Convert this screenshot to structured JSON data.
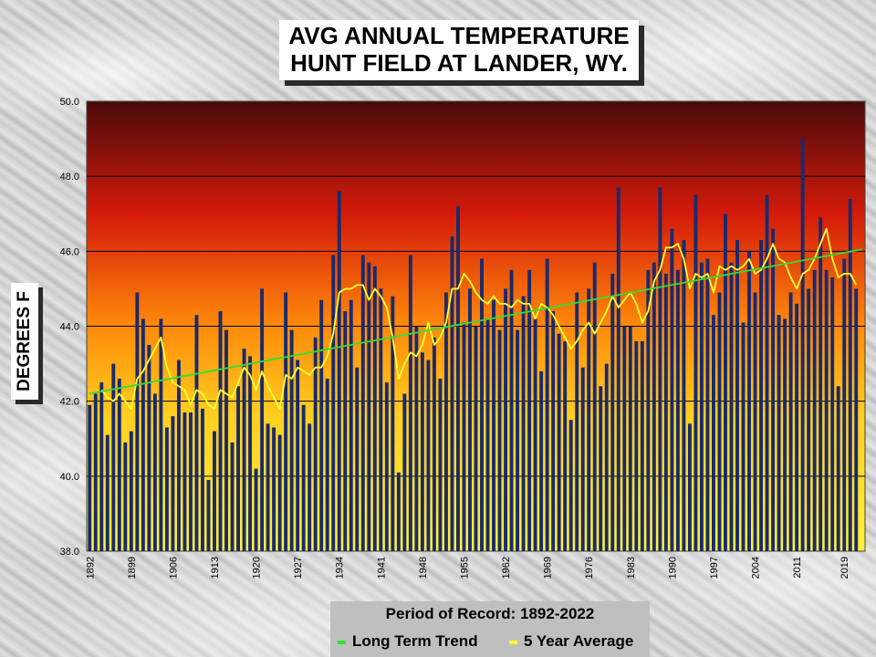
{
  "chart_data": {
    "type": "bar",
    "title": "AVG ANNUAL TEMPERATURE",
    "subtitle": "HUNT FIELD AT LANDER, WY.",
    "ylabel": "DEGREES F",
    "ylim": [
      38.0,
      50.0
    ],
    "yticks": [
      "38.0",
      "40.0",
      "42.0",
      "44.0",
      "46.0",
      "48.0",
      "50.0"
    ],
    "x_start": 1892,
    "x_end": 2022,
    "xticks": [
      "1892",
      "1899",
      "1906",
      "1913",
      "1920",
      "1927",
      "1934",
      "1941",
      "1948",
      "1955",
      "1962",
      "1969",
      "1976",
      "1983",
      "1990",
      "1997",
      "2004",
      "2011",
      "2019"
    ],
    "legend_title": "Period of Record: 1892-2022",
    "grid": "horizontal",
    "series": [
      {
        "kind": "bar",
        "color": "#1a2a6c",
        "values": [
          41.9,
          42.2,
          42.5,
          41.1,
          43.0,
          42.6,
          40.9,
          41.2,
          44.9,
          44.2,
          43.5,
          42.2,
          44.2,
          41.3,
          41.6,
          43.1,
          41.7,
          41.7,
          44.3,
          41.8,
          39.9,
          41.2,
          44.4,
          43.9,
          40.9,
          42.4,
          43.4,
          43.2,
          40.2,
          45.0,
          41.4,
          41.3,
          41.1,
          44.9,
          43.9,
          43.1,
          41.9,
          41.4,
          43.7,
          44.7,
          42.6,
          45.9,
          47.6,
          44.4,
          44.7,
          42.9,
          45.9,
          45.7,
          45.6,
          45.0,
          42.5,
          44.8,
          40.1,
          42.2,
          45.9,
          44.0,
          43.3,
          43.1,
          43.7,
          42.6,
          44.9,
          46.4,
          47.2,
          44.1,
          45.0,
          44.0,
          45.8,
          44.2,
          44.7,
          43.9,
          45.0,
          45.5,
          43.9,
          44.8,
          45.5,
          44.2,
          42.8,
          45.8,
          44.4,
          43.8,
          43.6,
          41.5,
          44.9,
          42.9,
          45.0,
          45.7,
          42.4,
          43.0,
          45.4,
          47.7,
          44.0,
          44.0,
          43.6,
          43.6,
          45.5,
          45.7,
          47.7,
          45.4,
          46.6,
          45.5,
          46.3,
          41.4,
          47.5,
          45.7,
          45.8,
          44.3,
          44.9,
          47.0,
          45.7,
          46.3,
          44.1,
          46.0,
          44.9,
          46.3,
          47.5,
          46.6,
          44.3,
          44.2,
          44.9,
          44.6,
          49.0,
          45.0,
          45.5,
          46.9,
          45.5,
          45.3,
          42.4,
          45.8,
          47.4,
          45.0
        ]
      },
      {
        "kind": "line",
        "name": "5 Year Average",
        "color": "#ffff33",
        "values": [
          null,
          null,
          42.3,
          42.1,
          42.0,
          42.2,
          42.0,
          41.8,
          42.6,
          42.8,
          43.1,
          43.4,
          43.7,
          42.9,
          42.5,
          42.4,
          42.3,
          41.9,
          42.3,
          42.2,
          41.9,
          41.8,
          42.3,
          42.2,
          42.1,
          42.5,
          42.9,
          42.7,
          42.3,
          42.8,
          42.4,
          42.1,
          41.8,
          42.7,
          42.6,
          42.9,
          42.8,
          42.7,
          42.9,
          42.9,
          43.2,
          43.8,
          44.9,
          45.0,
          45.0,
          45.1,
          45.1,
          44.7,
          45.0,
          44.8,
          44.5,
          43.7,
          42.6,
          43.0,
          43.3,
          43.2,
          43.5,
          44.1,
          43.5,
          43.7,
          44.1,
          45.0,
          45.0,
          45.4,
          45.2,
          44.9,
          44.7,
          44.6,
          44.8,
          44.6,
          44.6,
          44.5,
          44.7,
          44.6,
          44.6,
          44.2,
          44.6,
          44.5,
          44.3,
          44.0,
          43.7,
          43.4,
          43.6,
          43.9,
          44.1,
          43.8,
          44.1,
          44.4,
          44.8,
          44.5,
          44.7,
          44.9,
          44.6,
          44.1,
          44.4,
          45.2,
          45.5,
          46.1,
          46.1,
          46.2,
          45.8,
          45.0,
          45.4,
          45.3,
          45.4,
          44.9,
          45.6,
          45.5,
          45.6,
          45.5,
          45.6,
          45.8,
          45.4,
          45.5,
          45.8,
          46.2,
          45.8,
          45.7,
          45.3,
          45.0,
          45.4,
          45.5,
          45.8,
          46.2,
          46.6,
          45.8,
          45.3,
          45.4,
          45.4,
          45.1,
          null
        ],
        "label": "5 Year Average"
      },
      {
        "kind": "line",
        "name": "Long Term Trend",
        "color": "#33dd33",
        "start_value": 42.2,
        "end_value": 46.05,
        "label": "Long Term Trend"
      }
    ]
  }
}
